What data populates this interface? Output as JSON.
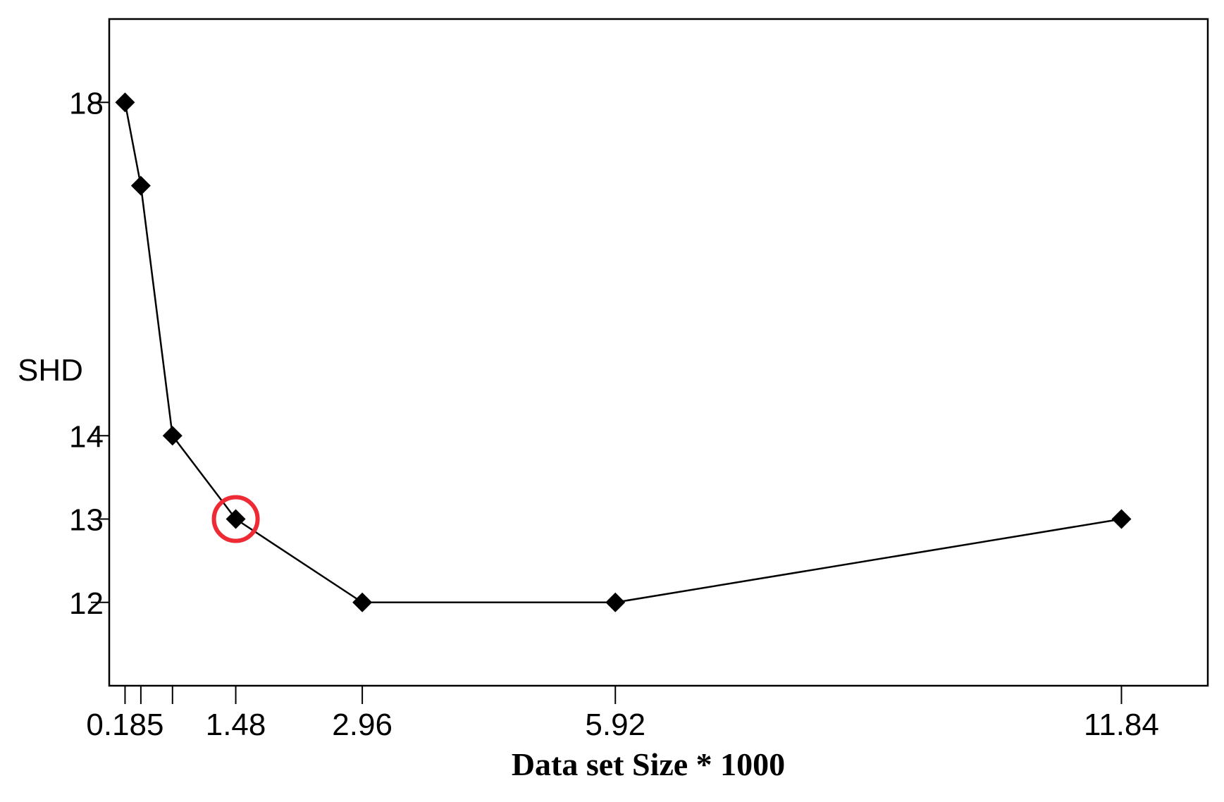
{
  "chart_data": {
    "type": "line",
    "title": "",
    "xlabel": "Data set Size * 1000",
    "ylabel": "SHD",
    "x_ticks": [
      {
        "value": 0.185,
        "label": "0.185"
      },
      {
        "value": 0.37,
        "label": ""
      },
      {
        "value": 0.74,
        "label": ""
      },
      {
        "value": 1.48,
        "label": "1.48"
      },
      {
        "value": 2.96,
        "label": "2.96"
      },
      {
        "value": 5.92,
        "label": "5.92"
      },
      {
        "value": 11.84,
        "label": "11.84"
      }
    ],
    "y_ticks": [
      12,
      13,
      14,
      18
    ],
    "xlim": [
      0,
      12.85
    ],
    "ylim": [
      11,
      19
    ],
    "grid": false,
    "series": [
      {
        "x": [
          0.185,
          0.37,
          0.74,
          1.48,
          2.96,
          5.92,
          11.84
        ],
        "y": [
          18,
          17,
          14,
          13,
          12,
          12,
          13
        ],
        "marker": "diamond",
        "color": "#000000"
      }
    ],
    "highlight": {
      "x": 1.48,
      "y": 13,
      "color": "#ee2a35"
    }
  }
}
